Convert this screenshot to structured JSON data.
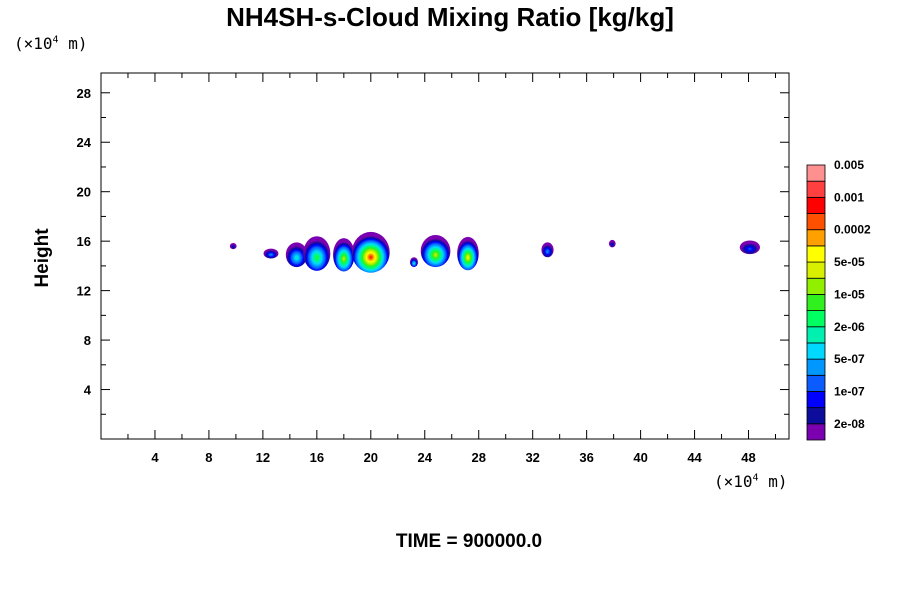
{
  "chart_data": {
    "type": "contour",
    "title": "NH4SH-s-Cloud Mixing Ratio [kg/kg]",
    "ylabel": "Height",
    "x_unit_prefix": "(×10",
    "x_unit_exp": "4",
    "x_unit_suffix": " m)",
    "y_unit_prefix": "(×10",
    "y_unit_exp": "4",
    "y_unit_suffix": " m)",
    "xlim": [
      0,
      51
    ],
    "ylim": [
      0,
      29.6
    ],
    "x_ticks": [
      4,
      8,
      12,
      16,
      20,
      24,
      28,
      32,
      36,
      40,
      44,
      48
    ],
    "y_ticks": [
      4,
      8,
      12,
      16,
      20,
      24,
      28
    ],
    "time_label": "TIME = 900000.0",
    "colorbar": {
      "colors": [
        "#7a00b0",
        "#0d0d9c",
        "#0000ff",
        "#0a5cff",
        "#0098ff",
        "#00d8ff",
        "#00f0b0",
        "#00ff60",
        "#30f020",
        "#90f000",
        "#d8f000",
        "#ffff00",
        "#ffa000",
        "#ff5000",
        "#ff0000",
        "#ff4040",
        "#ff9090"
      ],
      "labels": [
        "2e-08",
        "1e-07",
        "5e-07",
        "2e-06",
        "1e-05",
        "5e-05",
        "0.0002",
        "0.001",
        "0.005"
      ]
    },
    "cloud_cells": [
      {
        "x": 9.8,
        "y": 15.6,
        "w": 0.5,
        "h": 0.5,
        "level": 2
      },
      {
        "x": 12.6,
        "y": 15.0,
        "w": 1.1,
        "h": 0.8,
        "level": 4
      },
      {
        "x": 14.5,
        "y": 14.9,
        "w": 1.6,
        "h": 2.0,
        "level": 6
      },
      {
        "x": 16.0,
        "y": 15.0,
        "w": 2.0,
        "h": 2.8,
        "level": 8
      },
      {
        "x": 18.0,
        "y": 14.9,
        "w": 1.6,
        "h": 2.7,
        "level": 10
      },
      {
        "x": 20.0,
        "y": 15.1,
        "w": 2.8,
        "h": 3.3,
        "level": 14
      },
      {
        "x": 23.2,
        "y": 14.3,
        "w": 0.6,
        "h": 0.8,
        "level": 6
      },
      {
        "x": 24.8,
        "y": 15.2,
        "w": 2.2,
        "h": 2.6,
        "level": 10
      },
      {
        "x": 27.2,
        "y": 15.0,
        "w": 1.6,
        "h": 2.7,
        "level": 11
      },
      {
        "x": 33.1,
        "y": 15.3,
        "w": 0.9,
        "h": 1.2,
        "level": 4
      },
      {
        "x": 37.9,
        "y": 15.8,
        "w": 0.5,
        "h": 0.6,
        "level": 2
      },
      {
        "x": 48.1,
        "y": 15.5,
        "w": 1.5,
        "h": 1.1,
        "level": 3
      }
    ]
  }
}
